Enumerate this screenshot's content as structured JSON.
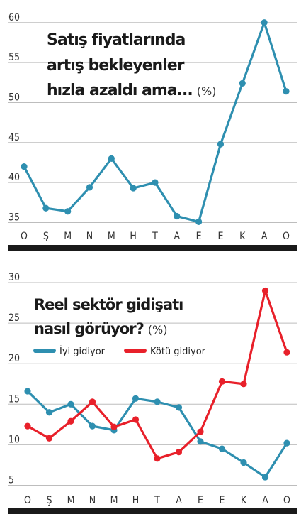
{
  "chart_data": [
    {
      "type": "line",
      "title_lines": [
        "Satış fiyatlarında",
        "artış bekleyenler",
        "hızla azaldı ama..."
      ],
      "unit": "(%)",
      "categories": [
        "O",
        "Ş",
        "M",
        "N",
        "M",
        "H",
        "T",
        "A",
        "E",
        "E",
        "K",
        "A",
        "O"
      ],
      "yticks": [
        35,
        40,
        45,
        50,
        55,
        60
      ],
      "ylim": [
        34.5,
        61
      ],
      "grid": true,
      "series": [
        {
          "name": "",
          "color": "#2e8fb0",
          "values": [
            42,
            36.8,
            36.4,
            39.4,
            43,
            39.3,
            40,
            35.8,
            35.1,
            44.8,
            52.4,
            60,
            51.4
          ]
        }
      ]
    },
    {
      "type": "line",
      "title_lines": [
        "Reel sektör gidişatı",
        "nasıl görüyor?"
      ],
      "unit": "(%)",
      "categories": [
        "O",
        "Ş",
        "M",
        "N",
        "M",
        "H",
        "T",
        "A",
        "E",
        "E",
        "K",
        "A",
        "O"
      ],
      "yticks": [
        5,
        10,
        15,
        20,
        25,
        30
      ],
      "ylim": [
        4.5,
        30.5
      ],
      "grid": true,
      "legend_position": "top-left",
      "series": [
        {
          "name": "İyi gidiyor",
          "color": "#2e8fb0",
          "values": [
            16.6,
            14,
            15,
            12.3,
            11.8,
            15.7,
            15.3,
            14.6,
            10.4,
            9.5,
            7.8,
            6,
            10.2
          ]
        },
        {
          "name": "Kötü gidiyor",
          "color": "#e8202a",
          "values": [
            12.3,
            10.8,
            12.9,
            15.3,
            12.2,
            13.1,
            8.3,
            9.1,
            11.6,
            17.8,
            17.5,
            29,
            21.4
          ]
        }
      ]
    }
  ]
}
